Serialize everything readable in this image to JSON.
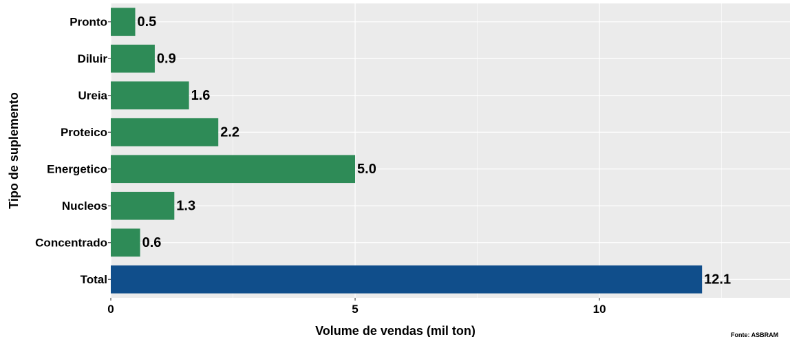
{
  "chart_data": {
    "type": "bar",
    "orientation": "horizontal",
    "categories": [
      "Pronto",
      "Diluir",
      "Ureia",
      "Proteico",
      "Energetico",
      "Nucleos",
      "Concentrado",
      "Total"
    ],
    "values": [
      0.5,
      0.9,
      1.6,
      2.2,
      5.0,
      1.3,
      0.6,
      12.1
    ],
    "data_labels": [
      "0.5",
      "0.9",
      "1.6",
      "2.2",
      "5.0",
      "1.3",
      "0.6",
      "12.1"
    ],
    "bar_colors": [
      "#2e8b57",
      "#2e8b57",
      "#2e8b57",
      "#2e8b57",
      "#2e8b57",
      "#2e8b57",
      "#2e8b57",
      "#104e8b"
    ],
    "xlabel": "Volume de vendas (mil ton)",
    "ylabel": "Tipo de suplemento",
    "xlim": [
      0,
      13.9
    ],
    "x_ticks": [
      0,
      5,
      10
    ],
    "x_tick_labels": [
      "0",
      "5",
      "10"
    ],
    "grid": true,
    "legend": "none",
    "source_note": "Fonte: ASBRAM"
  },
  "colors": {
    "panel_background": "#ebebeb",
    "gridline": "#ffffff",
    "bar_default": "#2e8b57",
    "bar_total": "#104e8b"
  }
}
